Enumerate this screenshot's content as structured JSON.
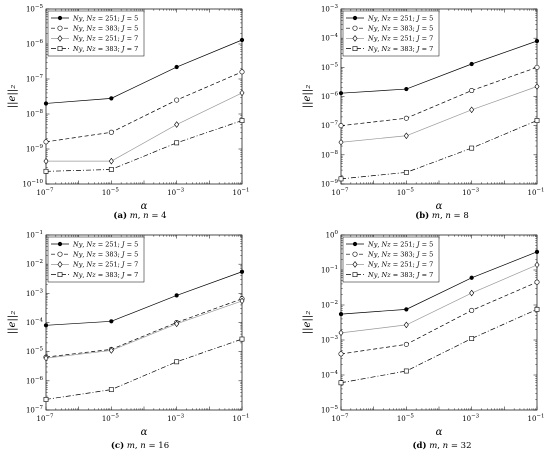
{
  "chart_data": [
    {
      "type": "line",
      "caption": {
        "label": "(a)",
        "text": "m, n = 4"
      },
      "xlabel": "α",
      "ylabel": "||e||₂",
      "x": [
        1e-07,
        1e-05,
        0.001,
        0.1
      ],
      "xscale": "log",
      "yscale": "log",
      "xlim": [
        1e-07,
        0.1
      ],
      "ylim": [
        1e-10,
        1e-05
      ],
      "xticks": [
        -7,
        -5,
        -3,
        -1
      ],
      "yticks": [
        -10,
        -9,
        -8,
        -7,
        -6,
        -5
      ],
      "legend_position": "top-left",
      "series": [
        {
          "name": "Ny, Nz = 251; J = 5",
          "values": [
            2e-08,
            2.8e-08,
            2.2e-07,
            1.3e-06
          ]
        },
        {
          "name": "Ny, Nz = 383; J = 5",
          "values": [
            1.6e-09,
            3e-09,
            2.5e-08,
            1.6e-07
          ]
        },
        {
          "name": "Ny, Nz = 251; J = 7",
          "values": [
            4.5e-10,
            4.5e-10,
            5e-09,
            4e-08
          ]
        },
        {
          "name": "Ny, Nz = 383; J = 7",
          "values": [
            2.3e-10,
            2.6e-10,
            1.5e-09,
            6.5e-09
          ]
        }
      ]
    },
    {
      "type": "line",
      "caption": {
        "label": "(b)",
        "text": "m, n = 8"
      },
      "xlabel": "α",
      "ylabel": "||e||₂",
      "x": [
        1e-07,
        1e-05,
        0.001,
        0.1
      ],
      "xscale": "log",
      "yscale": "log",
      "xlim": [
        1e-07,
        0.1
      ],
      "ylim": [
        1e-09,
        0.001
      ],
      "xticks": [
        -7,
        -5,
        -3,
        -1
      ],
      "yticks": [
        -9,
        -8,
        -7,
        -6,
        -5,
        -4,
        -3
      ],
      "legend_position": "top-left",
      "series": [
        {
          "name": "Ny, Nz = 251; J = 5",
          "values": [
            1.3e-06,
            1.8e-06,
            1.3e-05,
            8e-05
          ]
        },
        {
          "name": "Ny, Nz = 383; J = 5",
          "values": [
            1e-07,
            1.8e-07,
            1.6e-06,
            1e-05
          ]
        },
        {
          "name": "Ny, Nz = 251; J = 7",
          "values": [
            2.7e-08,
            4.5e-08,
            3.5e-07,
            2.2e-06
          ]
        },
        {
          "name": "Ny, Nz = 383; J = 7",
          "values": [
            1.5e-09,
            2.5e-09,
            1.7e-08,
            1.5e-07
          ]
        }
      ]
    },
    {
      "type": "line",
      "caption": {
        "label": "(c)",
        "text": "m, n = 16"
      },
      "xlabel": "α",
      "ylabel": "||e||₂",
      "x": [
        1e-07,
        1e-05,
        0.001,
        0.1
      ],
      "xscale": "log",
      "yscale": "log",
      "xlim": [
        1e-07,
        0.1
      ],
      "ylim": [
        1e-07,
        0.1
      ],
      "xticks": [
        -7,
        -5,
        -3,
        -1
      ],
      "yticks": [
        -7,
        -6,
        -5,
        -4,
        -3,
        -2,
        -1
      ],
      "legend_position": "top-left",
      "series": [
        {
          "name": "Ny, Nz = 251; J = 5",
          "values": [
            8e-05,
            0.00011,
            0.00085,
            0.0055
          ]
        },
        {
          "name": "Ny, Nz = 383; J = 5",
          "values": [
            6.5e-06,
            1.2e-05,
            0.0001,
            0.00065
          ]
        },
        {
          "name": "Ny, Nz = 251; J = 7",
          "values": [
            6e-06,
            1.1e-05,
            9e-05,
            0.00055
          ]
        },
        {
          "name": "Ny, Nz = 383; J = 7",
          "values": [
            2.3e-07,
            5e-07,
            4.5e-06,
            2.7e-05
          ]
        }
      ]
    },
    {
      "type": "line",
      "caption": {
        "label": "(d)",
        "text": "m, n = 32"
      },
      "xlabel": "α",
      "ylabel": "||e||₂",
      "x": [
        1e-07,
        1e-05,
        0.001,
        0.1
      ],
      "xscale": "log",
      "yscale": "log",
      "xlim": [
        1e-07,
        0.1
      ],
      "ylim": [
        1e-05,
        1
      ],
      "xticks": [
        -7,
        -5,
        -3,
        -1
      ],
      "yticks": [
        -5,
        -4,
        -3,
        -2,
        -1,
        0
      ],
      "legend_position": "top-left",
      "series": [
        {
          "name": "Ny, Nz = 251; J = 5",
          "values": [
            0.0055,
            0.0075,
            0.06,
            0.33
          ]
        },
        {
          "name": "Ny, Nz = 383; J = 5",
          "values": [
            0.0004,
            0.00075,
            0.007,
            0.045
          ]
        },
        {
          "name": "Ny, Nz = 251; J = 7",
          "values": [
            0.0016,
            0.0027,
            0.022,
            0.14
          ]
        },
        {
          "name": "Ny, Nz = 383; J = 7",
          "values": [
            6e-05,
            0.00013,
            0.0011,
            0.0075
          ]
        }
      ]
    }
  ],
  "styles": {
    "colors": [
      "#000000",
      "#000000",
      "#999999",
      "#000000"
    ],
    "dashes": [
      "",
      "4,2.5",
      "",
      "5,2,1,2"
    ],
    "markers": [
      "dot",
      "circle",
      "diamond",
      "square"
    ]
  }
}
